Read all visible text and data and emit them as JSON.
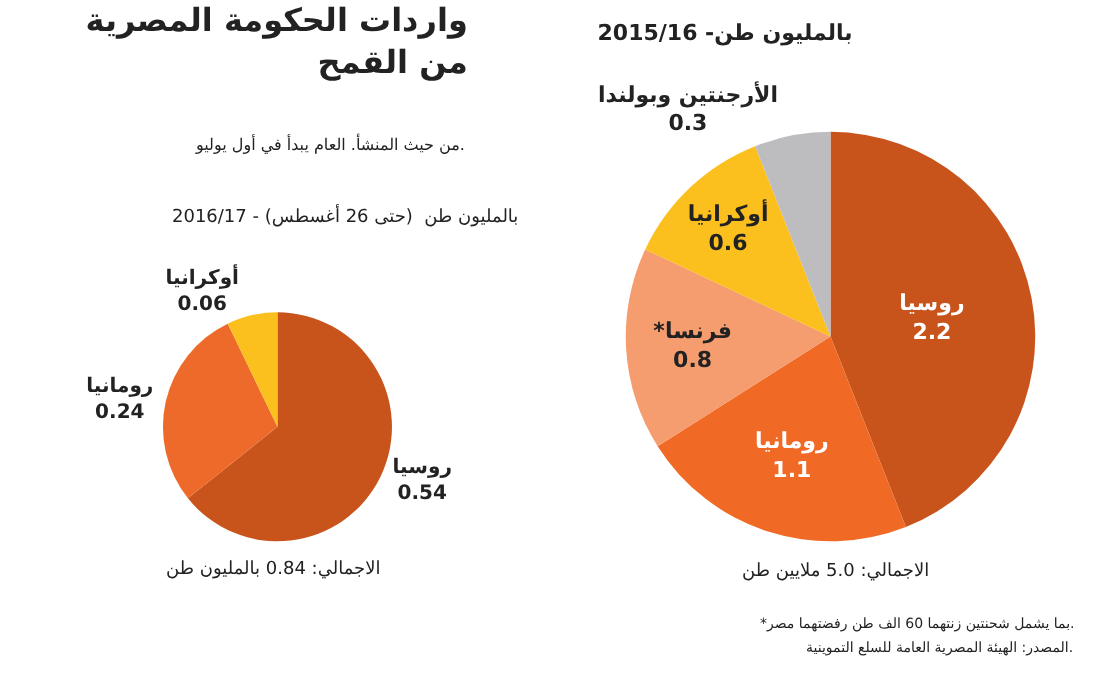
{
  "chart_data": [
    {
      "type": "pie",
      "title": "واردات الحكومة المصرية\nمن القمح",
      "subtitle": "من حيث المنشأ. العام يبدأ في أول يوليو.",
      "categories": [
        "روسيا",
        "رومانيا",
        "أوكرانيا"
      ],
      "values": [
        0.54,
        0.24,
        0.06
      ],
      "colors": [
        "#c8541c",
        "#ee6a2a",
        "#fbbf1e"
      ],
      "data_labels": true,
      "annotations": [
        "2016/17 - بالمليون طن  (حتى 26 أغسطس)",
        "الاجمالي: 0.84 بالمليون طن"
      ]
    },
    {
      "type": "pie",
      "title": "2015/16 -بالمليون طن",
      "categories": [
        "روسيا",
        "رومانيا",
        "*فرنسا",
        "أوكرانيا",
        "الأرجنتين وبولندا"
      ],
      "values": [
        2.2,
        1.1,
        0.8,
        0.6,
        0.3
      ],
      "colors": [
        "#c8541c",
        "#f06a25",
        "#f59d6e",
        "#fbbf1e",
        "#bdbdc0"
      ],
      "data_labels": true,
      "annotations": [
        "الاجمالي: 5.0 ملايين طن",
        "*بما يشمل شحنتين زنتهما 60 الف طن رفضتهما مصر.",
        "المصدر: الهيئة المصرية العامة للسلع التموينية."
      ]
    }
  ]
}
